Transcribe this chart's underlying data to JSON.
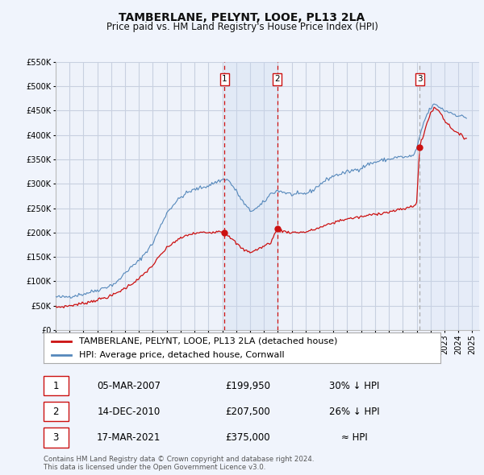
{
  "title": "TAMBERLANE, PELYNT, LOOE, PL13 2LA",
  "subtitle": "Price paid vs. HM Land Registry's House Price Index (HPI)",
  "ylim": [
    0,
    550000
  ],
  "yticks": [
    0,
    50000,
    100000,
    150000,
    200000,
    250000,
    300000,
    350000,
    400000,
    450000,
    500000,
    550000
  ],
  "ytick_labels": [
    "£0",
    "£50K",
    "£100K",
    "£150K",
    "£200K",
    "£250K",
    "£300K",
    "£350K",
    "£400K",
    "£450K",
    "£500K",
    "£550K"
  ],
  "xlim_start": 1995.0,
  "xlim_end": 2025.5,
  "bg_color": "#f0f4fc",
  "plot_bg_color": "#eef2fa",
  "grid_color": "#c8d0e0",
  "red_line_color": "#cc1111",
  "blue_line_color": "#5588bb",
  "vline_red_color": "#cc1111",
  "vline_grey_color": "#aaaaaa",
  "shade_color": "#c8d8f0",
  "title_fontsize": 10,
  "subtitle_fontsize": 8.5,
  "tick_fontsize": 7,
  "legend_fontsize": 8,
  "table_fontsize": 8.5,
  "transactions": [
    {
      "num": 1,
      "date": "05-MAR-2007",
      "price": 199950,
      "year": 2007.17,
      "pct": "30% ↓ HPI"
    },
    {
      "num": 2,
      "date": "14-DEC-2010",
      "price": 207500,
      "year": 2010.96,
      "pct": "26% ↓ HPI"
    },
    {
      "num": 3,
      "date": "17-MAR-2021",
      "price": 375000,
      "year": 2021.21,
      "pct": "≈ HPI"
    }
  ],
  "legend_entries": [
    "TAMBERLANE, PELYNT, LOOE, PL13 2LA (detached house)",
    "HPI: Average price, detached house, Cornwall"
  ],
  "footer_text": "Contains HM Land Registry data © Crown copyright and database right 2024.\nThis data is licensed under the Open Government Licence v3.0."
}
